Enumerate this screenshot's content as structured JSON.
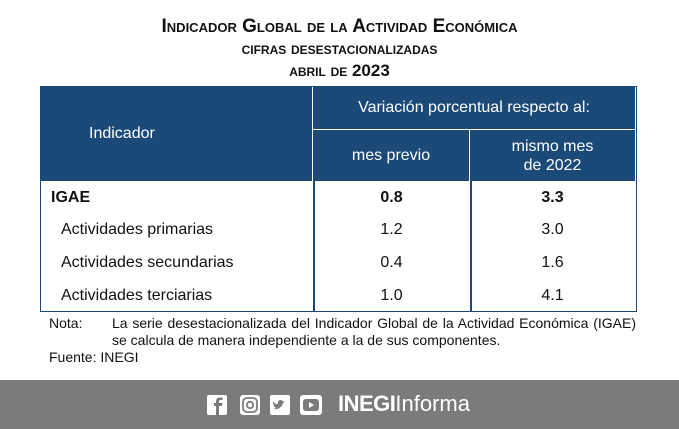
{
  "header": {
    "title": "Indicador Global de la Actividad Económica",
    "subtitle": "cifras desestacionalizadas",
    "period": "abril de 2023"
  },
  "table": {
    "columns": {
      "indicator": "Indicador",
      "group": "Variación porcentual respecto al:",
      "previous": "mes previo",
      "same_month": "mismo mes de 2022"
    },
    "rows": [
      [
        "IGAE",
        "0.8",
        "3.3"
      ],
      [
        "Actividades primarias",
        "1.2",
        "3.0"
      ],
      [
        "Actividades secundarias",
        "0.4",
        "1.6"
      ],
      [
        "Actividades terciarias",
        "1.0",
        "4.1"
      ]
    ]
  },
  "note": {
    "label": "Nota:",
    "text": "La serie desestacionalizada del Indicador Global de la Actividad Económica (IGAE) se calcula de manera independiente a la de sus componentes."
  },
  "source": "Fuente: INEGI",
  "footer": {
    "brand": "INEGI",
    "suffix": "Informa"
  }
}
